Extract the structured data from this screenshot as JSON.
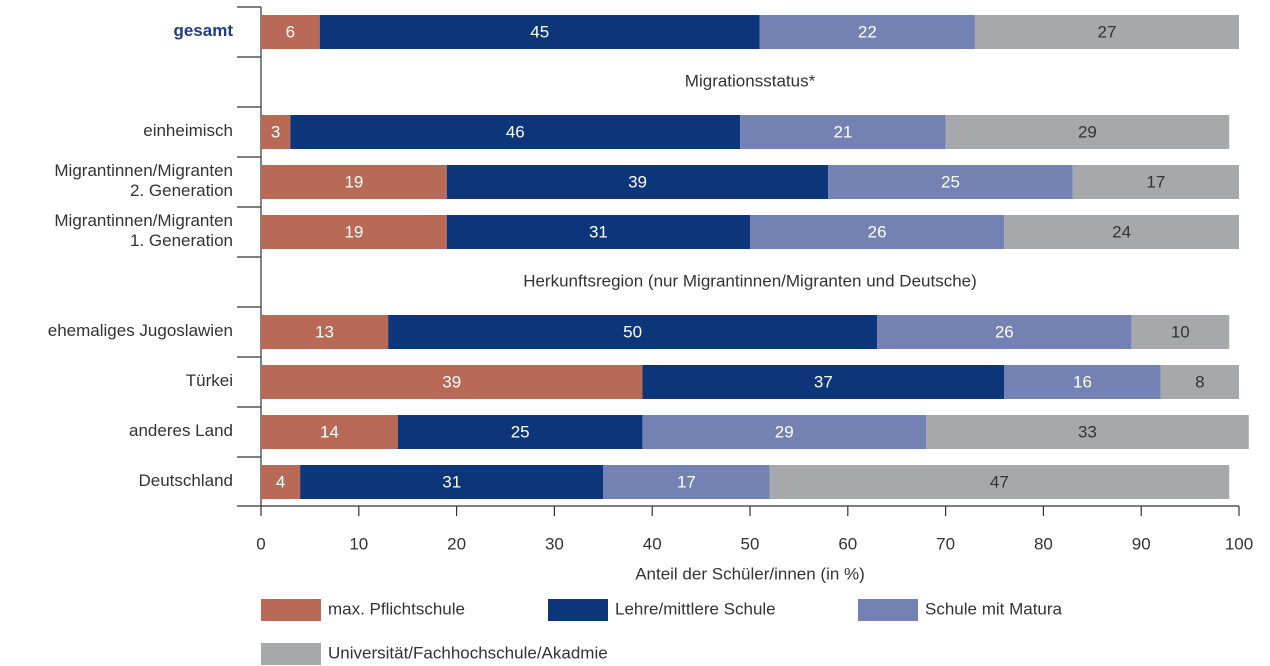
{
  "chart_data": {
    "type": "stacked-barh",
    "categories": [
      "gesamt",
      null,
      "einheimisch",
      "Migrantinnen/Migranten\n2. Generation",
      "Migrantinnen/Migranten\n1. Generation",
      null,
      "ehemaliges Jugoslawien",
      "Türkei",
      "anderes Land",
      "Deutschland"
    ],
    "section_labels": [
      "Migrationsstatus*",
      "Herkunftsregion (nur Migrantinnen/Migranten und Deutsche)"
    ],
    "series": [
      {
        "name": "max. Pflichtschule",
        "color": "#b96a56",
        "label_color": "#ffffff",
        "values": [
          6,
          null,
          3,
          19,
          19,
          null,
          13,
          39,
          14,
          4
        ]
      },
      {
        "name": "Lehre/mittlere Schule",
        "color": "#0d367a",
        "label_color": "#ffffff",
        "values": [
          45,
          null,
          46,
          39,
          31,
          null,
          50,
          37,
          25,
          31
        ]
      },
      {
        "name": "Schule mit Matura",
        "color": "#7381b3",
        "label_color": "#ffffff",
        "values": [
          22,
          null,
          21,
          25,
          26,
          null,
          26,
          16,
          29,
          17
        ]
      },
      {
        "name": "Universität/Fachhochschule/Akadmie",
        "color": "#a7a8ab",
        "label_color": "#333333",
        "values": [
          27,
          null,
          29,
          17,
          24,
          null,
          10,
          8,
          33,
          47
        ]
      }
    ],
    "xlabel": "Anteil der Schüler/innen (in %)",
    "xlim": [
      0,
      100
    ],
    "xticks": [
      0,
      10,
      20,
      30,
      40,
      50,
      60,
      70,
      80,
      90,
      100
    ],
    "highlight_color": "#1f3d85"
  }
}
